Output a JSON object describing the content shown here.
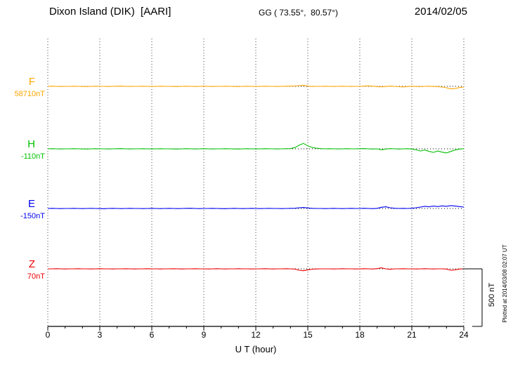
{
  "chart_data": {
    "type": "line",
    "title": "Dixon Island (DIK)  [AARI]",
    "coordinates": "GG ( 73.55°,  80.57°)",
    "date": "2014/02/05",
    "xlabel": "U T (hour)",
    "x_ticks": [
      0,
      3,
      6,
      9,
      12,
      15,
      18,
      21,
      24
    ],
    "x_range": [
      0,
      24
    ],
    "x_start": 0,
    "x_step": 0.25,
    "scale_bar_label": "500 nT",
    "plotted_note": "Plotted at 2014/03/08 02:07 UT",
    "grid": "vertical-dotted",
    "series": [
      {
        "name": "F",
        "baseline_label": "58710nT",
        "baseline": 58710,
        "color": "#FFA500",
        "values": [
          58710,
          58711,
          58710,
          58709,
          58710,
          58710,
          58711,
          58710,
          58709,
          58708,
          58710,
          58711,
          58710,
          58710,
          58709,
          58710,
          58711,
          58712,
          58710,
          58709,
          58710,
          58710,
          58711,
          58710,
          58709,
          58710,
          58711,
          58710,
          58710,
          58709,
          58708,
          58710,
          58711,
          58710,
          58709,
          58710,
          58711,
          58710,
          58709,
          58710,
          58710,
          58711,
          58710,
          58709,
          58708,
          58710,
          58711,
          58710,
          58709,
          58710,
          58711,
          58710,
          58710,
          58709,
          58710,
          58711,
          58712,
          58713,
          58716,
          58718,
          58712,
          58709,
          58710,
          58710,
          58711,
          58710,
          58709,
          58710,
          58711,
          58710,
          58709,
          58710,
          58710,
          58712,
          58714,
          58711,
          58708,
          58706,
          58709,
          58712,
          58710,
          58707,
          58705,
          58708,
          58711,
          58709,
          58707,
          58710,
          58711,
          58709,
          58707,
          58704,
          58698,
          58688,
          58692,
          58700,
          58704
        ]
      },
      {
        "name": "H",
        "baseline_label": "-110nT",
        "baseline": -110,
        "color": "#00C000",
        "values": [
          -110,
          -109,
          -110,
          -111,
          -110,
          -110,
          -109,
          -110,
          -111,
          -112,
          -110,
          -109,
          -110,
          -110,
          -111,
          -110,
          -109,
          -108,
          -110,
          -111,
          -110,
          -110,
          -109,
          -110,
          -111,
          -110,
          -109,
          -110,
          -110,
          -111,
          -112,
          -110,
          -109,
          -110,
          -111,
          -110,
          -109,
          -110,
          -111,
          -110,
          -110,
          -109,
          -110,
          -111,
          -112,
          -110,
          -109,
          -110,
          -111,
          -110,
          -109,
          -110,
          -110,
          -111,
          -110,
          -109,
          -108,
          -100,
          -80,
          -65,
          -85,
          -98,
          -105,
          -108,
          -110,
          -109,
          -110,
          -111,
          -110,
          -109,
          -110,
          -110,
          -109,
          -108,
          -110,
          -112,
          -110,
          -118,
          -112,
          -108,
          -110,
          -112,
          -110,
          -109,
          -112,
          -118,
          -128,
          -120,
          -132,
          -140,
          -128,
          -138,
          -145,
          -132,
          -120,
          -112,
          -110
        ]
      },
      {
        "name": "E",
        "baseline_label": "-150nT",
        "baseline": -150,
        "color": "#0000F0",
        "values": [
          -150,
          -149,
          -150,
          -151,
          -150,
          -150,
          -149,
          -150,
          -151,
          -150,
          -149,
          -150,
          -151,
          -152,
          -150,
          -149,
          -150,
          -151,
          -150,
          -149,
          -150,
          -150,
          -151,
          -150,
          -149,
          -150,
          -151,
          -150,
          -149,
          -150,
          -151,
          -150,
          -149,
          -148,
          -150,
          -151,
          -150,
          -150,
          -149,
          -150,
          -151,
          -152,
          -150,
          -149,
          -150,
          -151,
          -150,
          -149,
          -150,
          -151,
          -150,
          -149,
          -150,
          -150,
          -151,
          -150,
          -149,
          -148,
          -144,
          -142,
          -146,
          -149,
          -150,
          -150,
          -151,
          -150,
          -149,
          -150,
          -151,
          -150,
          -149,
          -150,
          -150,
          -148,
          -150,
          -151,
          -149,
          -140,
          -136,
          -144,
          -148,
          -150,
          -149,
          -150,
          -148,
          -144,
          -138,
          -132,
          -136,
          -130,
          -134,
          -128,
          -132,
          -126,
          -130,
          -134,
          -138
        ]
      },
      {
        "name": "Z",
        "baseline_label": "70nT",
        "baseline": 70,
        "color": "#F00000",
        "values": [
          70,
          70,
          71,
          70,
          69,
          70,
          70,
          71,
          70,
          70,
          69,
          70,
          71,
          70,
          70,
          69,
          70,
          70,
          71,
          70,
          69,
          70,
          70,
          71,
          70,
          70,
          69,
          70,
          70,
          71,
          70,
          69,
          70,
          70,
          71,
          70,
          70,
          69,
          70,
          71,
          70,
          69,
          70,
          70,
          71,
          70,
          70,
          69,
          70,
          70,
          71,
          70,
          69,
          70,
          70,
          71,
          70,
          68,
          58,
          54,
          62,
          67,
          69,
          70,
          70,
          70,
          69,
          70,
          71,
          70,
          70,
          69,
          70,
          71,
          70,
          69,
          72,
          78,
          70,
          66,
          70,
          70,
          71,
          70,
          70,
          69,
          70,
          71,
          70,
          69,
          70,
          70,
          68,
          58,
          62,
          68,
          70
        ]
      }
    ]
  }
}
